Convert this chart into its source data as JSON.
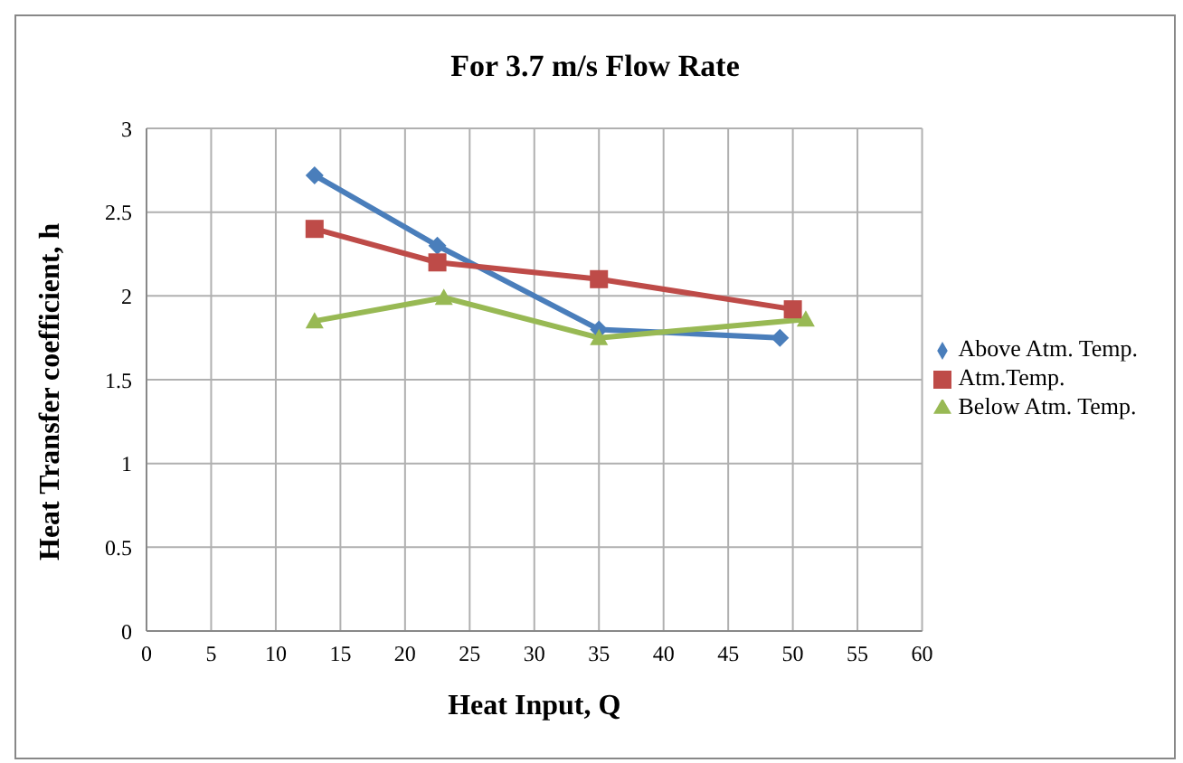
{
  "chart_data": {
    "type": "line",
    "title": "For 3.7 m/s Flow Rate",
    "xlabel": "Heat Input, Q",
    "ylabel": "Heat Transfer coefficient, h",
    "xlim": [
      0,
      60
    ],
    "xticks": [
      0,
      5,
      10,
      15,
      20,
      25,
      30,
      35,
      40,
      45,
      50,
      55,
      60
    ],
    "ylim": [
      0,
      3
    ],
    "yticks": [
      0,
      0.5,
      1,
      1.5,
      2,
      2.5,
      3
    ],
    "grid": true,
    "legend": "right",
    "series": [
      {
        "name": "Above Atm. Temp.",
        "color": "#4a7ebb",
        "marker": "diamond",
        "x": [
          13,
          22.5,
          35,
          49
        ],
        "values": [
          2.72,
          2.3,
          1.8,
          1.75
        ]
      },
      {
        "name": "Atm.Temp.",
        "color": "#be4b48",
        "marker": "square",
        "x": [
          13,
          22.5,
          35,
          50
        ],
        "values": [
          2.4,
          2.2,
          2.1,
          1.92
        ]
      },
      {
        "name": "Below Atm. Temp.",
        "color": "#98b954",
        "marker": "triangle",
        "x": [
          13,
          23,
          35,
          51
        ],
        "values": [
          1.85,
          1.99,
          1.75,
          1.86
        ]
      }
    ]
  }
}
